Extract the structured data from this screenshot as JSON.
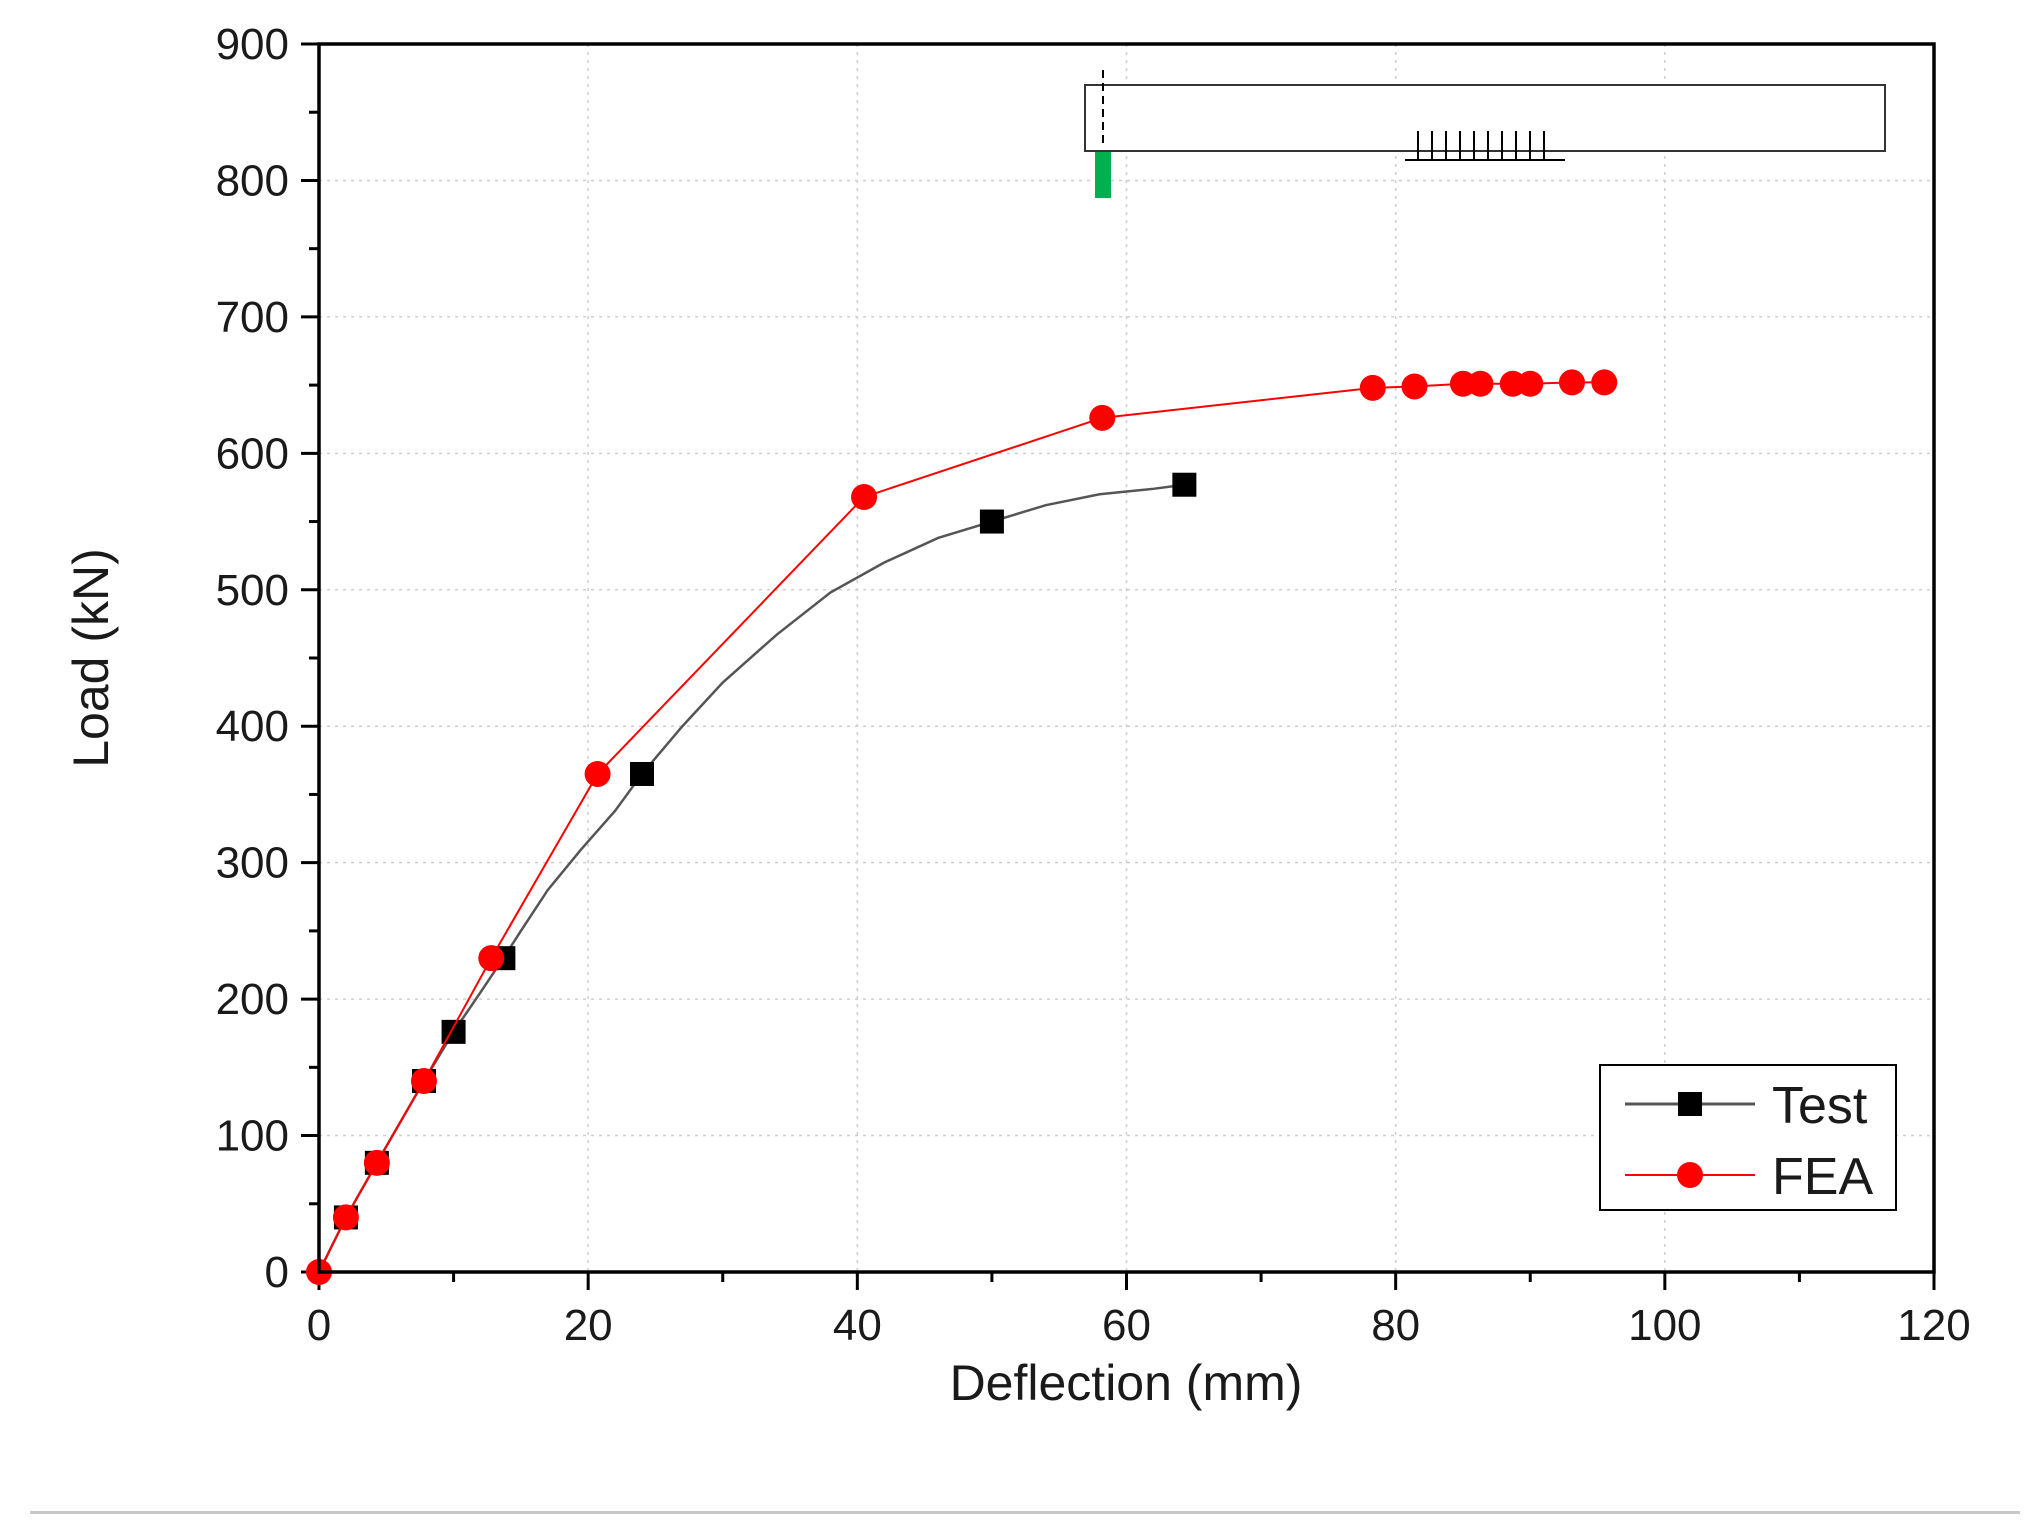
{
  "chart_data": {
    "type": "line",
    "title": "",
    "xlabel": "Deflection (mm)",
    "ylabel": "Load (kN)",
    "xlim": [
      0,
      120
    ],
    "ylim": [
      0,
      900
    ],
    "xticks": [
      0,
      20,
      40,
      60,
      80,
      100,
      120
    ],
    "yticks": [
      0,
      100,
      200,
      300,
      400,
      500,
      600,
      700,
      800,
      900
    ],
    "x_minor_step": 10,
    "y_minor_step": 50,
    "grid": true,
    "legend_position": "bottom-right",
    "series": [
      {
        "name": "Test",
        "color": "#000000",
        "line_color": "#555555",
        "marker": "square",
        "points": [
          [
            2,
            40
          ],
          [
            4.3,
            80
          ],
          [
            7.8,
            140
          ],
          [
            10,
            176
          ],
          [
            13.7,
            230
          ],
          [
            24,
            365
          ],
          [
            50,
            550
          ],
          [
            64.3,
            577
          ]
        ],
        "curve": [
          [
            0,
            0
          ],
          [
            2,
            40
          ],
          [
            4.3,
            80
          ],
          [
            7.8,
            140
          ],
          [
            10,
            176
          ],
          [
            12,
            205
          ],
          [
            13.7,
            230
          ],
          [
            15,
            250
          ],
          [
            17,
            280
          ],
          [
            19.5,
            310
          ],
          [
            22,
            338
          ],
          [
            24,
            365
          ],
          [
            27,
            400
          ],
          [
            30,
            432
          ],
          [
            34,
            467
          ],
          [
            38,
            498
          ],
          [
            42,
            520
          ],
          [
            46,
            538
          ],
          [
            50,
            550
          ],
          [
            54,
            562
          ],
          [
            58,
            570
          ],
          [
            62,
            574
          ],
          [
            64.3,
            577
          ]
        ]
      },
      {
        "name": "FEA",
        "color": "#ff0000",
        "line_color": "#ff0000",
        "marker": "circle",
        "points": [
          [
            0,
            0
          ],
          [
            2,
            40
          ],
          [
            4.3,
            80
          ],
          [
            7.8,
            140
          ],
          [
            12.8,
            230
          ],
          [
            20.7,
            365
          ],
          [
            40.5,
            568
          ],
          [
            58.2,
            626
          ],
          [
            78.3,
            648
          ],
          [
            81.4,
            649
          ],
          [
            85,
            651
          ],
          [
            86.3,
            651
          ],
          [
            88.7,
            651
          ],
          [
            90,
            651
          ],
          [
            93.1,
            652
          ],
          [
            95.5,
            652
          ]
        ]
      }
    ]
  },
  "inset": {
    "support_color": "#00b050",
    "description_labels": []
  }
}
